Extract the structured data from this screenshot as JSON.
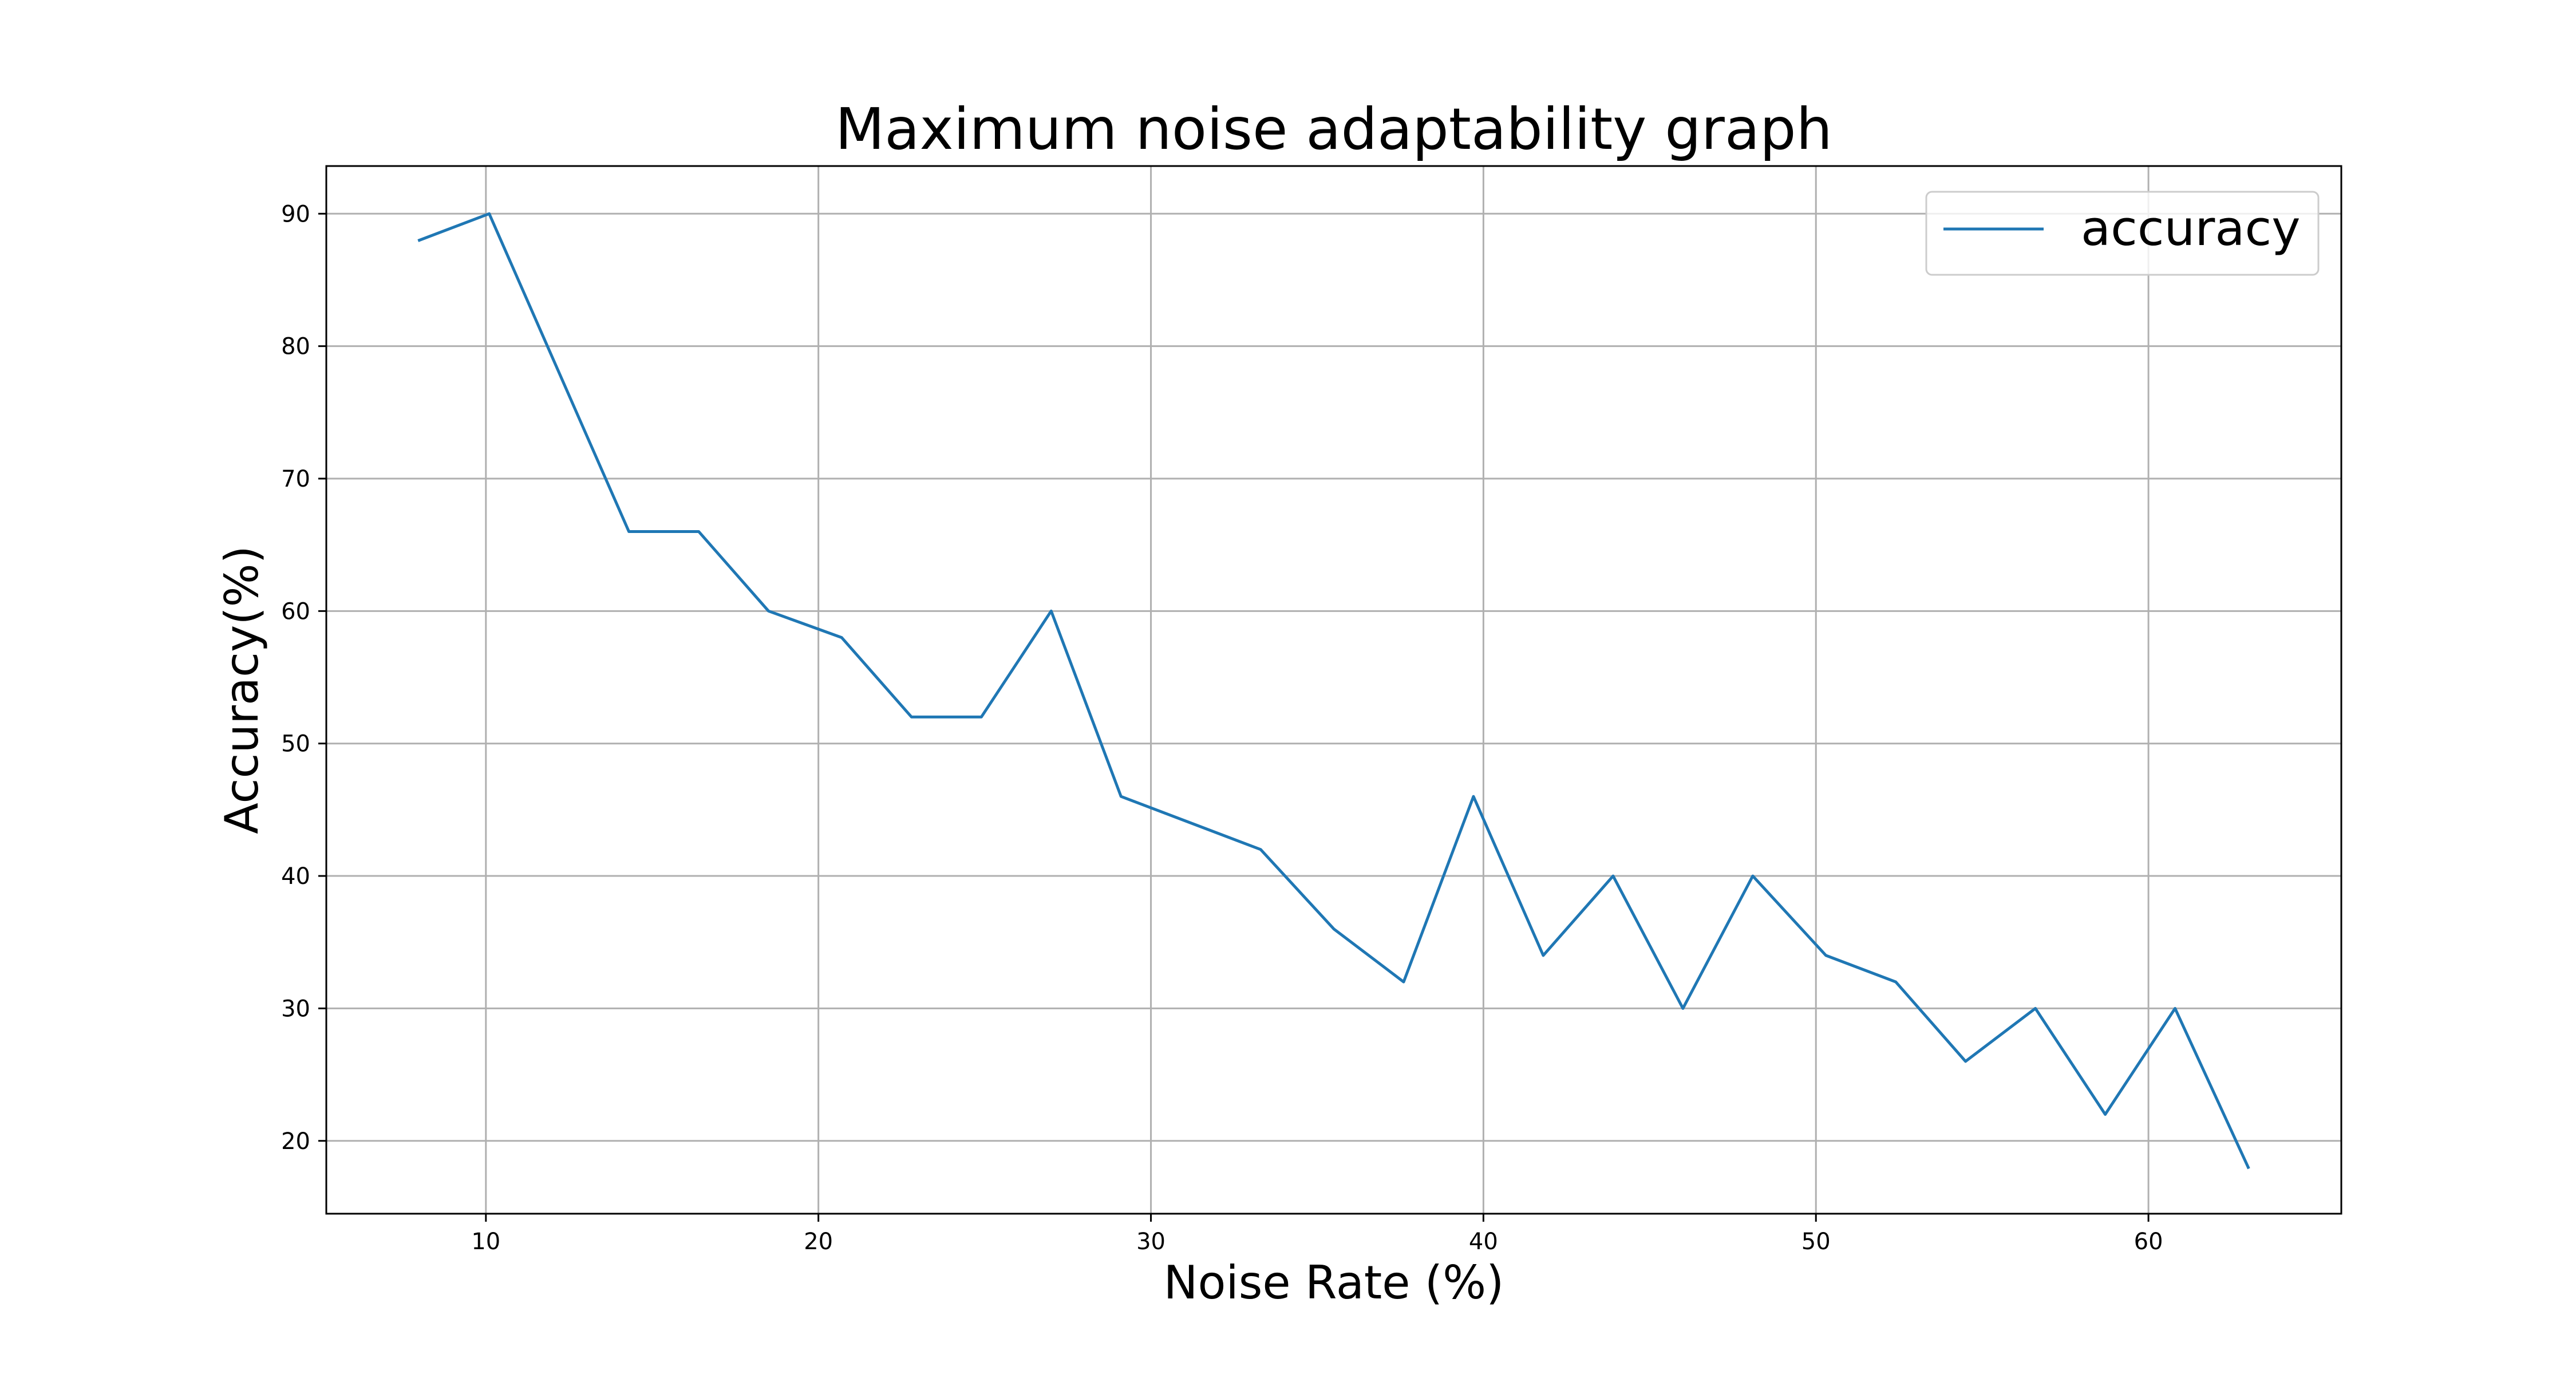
{
  "chart_data": {
    "type": "line",
    "title": "Maximum noise adaptability graph",
    "xlabel": "Noise Rate (%)",
    "ylabel": "Accuracy(%)",
    "xlim": [
      5.2,
      65.8
    ],
    "ylim": [
      14.5,
      93.6
    ],
    "xticks": [
      10,
      20,
      30,
      40,
      50,
      60
    ],
    "yticks": [
      20,
      30,
      40,
      50,
      60,
      70,
      80,
      90
    ],
    "grid": true,
    "legend_position": "top-right",
    "series": [
      {
        "name": "accuracy",
        "color": "#1f77b4",
        "x": [
          8.0,
          10.1,
          12.2,
          14.3,
          16.4,
          18.5,
          20.7,
          22.8,
          24.9,
          27.0,
          29.1,
          31.2,
          33.3,
          35.5,
          37.6,
          39.7,
          41.8,
          43.9,
          46.0,
          48.1,
          50.3,
          52.4,
          54.5,
          56.6,
          58.7,
          60.8,
          63.0
        ],
        "y": [
          88,
          90,
          78,
          66,
          66,
          60,
          58,
          52,
          52,
          60,
          46,
          44,
          42,
          36,
          32,
          46,
          34,
          40,
          30,
          40,
          34,
          32,
          26,
          30,
          22,
          30,
          18
        ]
      }
    ]
  }
}
